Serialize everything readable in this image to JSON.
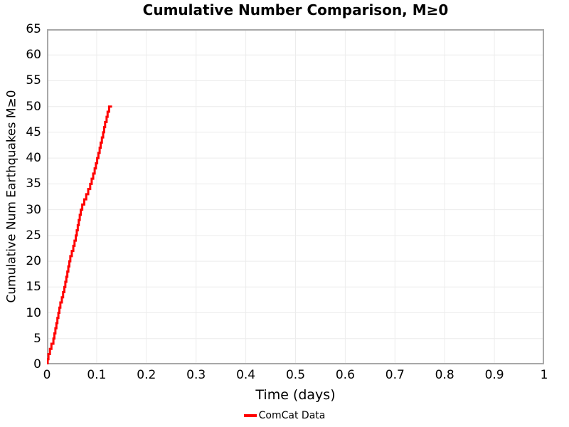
{
  "title": "Cumulative Number Comparison, M≥0",
  "chart_data": {
    "type": "line",
    "subtype": "cumulative-step",
    "title": "Cumulative Number Comparison, M≥0",
    "xlabel": "Time (days)",
    "ylabel": "Cumulative Num Earthquakes M≥0",
    "xlim": [
      0,
      1
    ],
    "ylim": [
      0,
      65
    ],
    "xticks": [
      0,
      0.1,
      0.2,
      0.3,
      0.4,
      0.5,
      0.6,
      0.7,
      0.8,
      0.9,
      1
    ],
    "xtick_labels": [
      "0",
      "0.1",
      "0.2",
      "0.3",
      "0.4",
      "0.5",
      "0.6",
      "0.7",
      "0.8",
      "0.9",
      "1"
    ],
    "yticks": [
      0,
      5,
      10,
      15,
      20,
      25,
      30,
      35,
      40,
      45,
      50,
      55,
      60,
      65
    ],
    "ytick_labels": [
      "0",
      "5",
      "10",
      "15",
      "20",
      "25",
      "30",
      "35",
      "40",
      "45",
      "50",
      "55",
      "60",
      "65"
    ],
    "grid": true,
    "legend_position": "bottom-center",
    "series": [
      {
        "name": "ComCat Data",
        "color": "#ff0000",
        "line_width": 3,
        "start": {
          "t": 0,
          "n": 0
        },
        "event_times_days": [
          0.0015,
          0.003,
          0.006,
          0.009,
          0.013,
          0.015,
          0.017,
          0.019,
          0.021,
          0.023,
          0.025,
          0.027,
          0.03,
          0.0325,
          0.035,
          0.037,
          0.039,
          0.041,
          0.043,
          0.045,
          0.047,
          0.05,
          0.053,
          0.0555,
          0.058,
          0.06,
          0.062,
          0.064,
          0.066,
          0.068,
          0.071,
          0.075,
          0.079,
          0.083,
          0.087,
          0.09,
          0.093,
          0.096,
          0.0985,
          0.101,
          0.1035,
          0.106,
          0.108,
          0.1105,
          0.113,
          0.115,
          0.117,
          0.12,
          0.122,
          0.125
        ],
        "final_count": 50,
        "line_end_time": 0.131
      }
    ]
  },
  "legend": {
    "items": [
      {
        "label": "ComCat Data",
        "color": "#ff0000"
      }
    ]
  },
  "colors": {
    "line": "#ff0000",
    "grid": "#ececec",
    "frame": "#a8a8a8",
    "text": "#000000",
    "background": "#ffffff"
  }
}
